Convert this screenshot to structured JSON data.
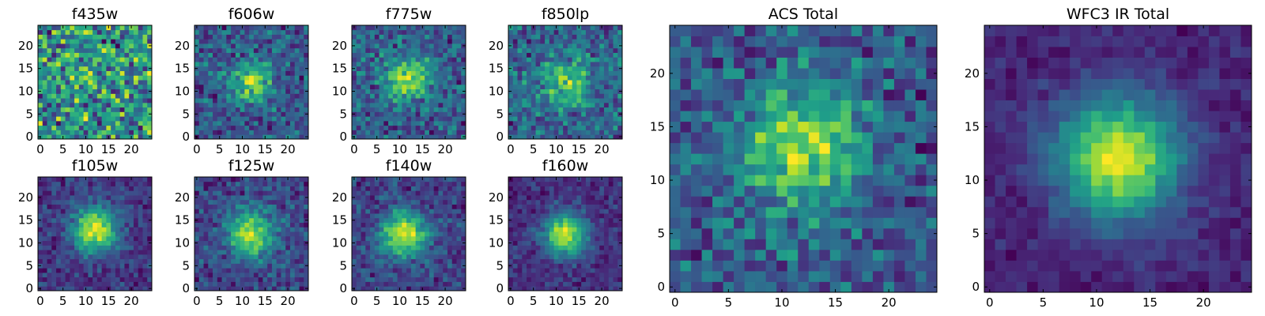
{
  "figure_type": "grid of pixel-image panels (heatmaps), viridis colormap",
  "chart_data": [
    {
      "type": "heatmap",
      "title": "f435w",
      "peak": [
        12,
        12
      ],
      "sigma": 4,
      "amp": 0.12,
      "noise": 0.42,
      "seed": 11,
      "xticks": [
        0,
        5,
        10,
        15,
        20
      ],
      "yticks": [
        0,
        5,
        10,
        15,
        20
      ],
      "xlim": [
        -0.5,
        24.5
      ],
      "ylim": [
        -0.5,
        24.5
      ]
    },
    {
      "type": "heatmap",
      "title": "f606w",
      "peak": [
        12,
        12
      ],
      "sigma": 3.2,
      "amp": 0.45,
      "noise": 0.26,
      "seed": 23,
      "xticks": [
        0,
        5,
        10,
        15,
        20
      ],
      "yticks": [
        0,
        5,
        10,
        15,
        20
      ],
      "xlim": [
        -0.5,
        24.5
      ],
      "ylim": [
        -0.5,
        24.5
      ]
    },
    {
      "type": "heatmap",
      "title": "f775w",
      "peak": [
        12,
        13
      ],
      "sigma": 3.4,
      "amp": 0.5,
      "noise": 0.25,
      "seed": 37,
      "xticks": [
        0,
        5,
        10,
        15,
        20
      ],
      "yticks": [
        0,
        5,
        10,
        15,
        20
      ],
      "xlim": [
        -0.5,
        24.5
      ],
      "ylim": [
        -0.5,
        24.5
      ]
    },
    {
      "type": "heatmap",
      "title": "f850lp",
      "peak": [
        12,
        12
      ],
      "sigma": 4,
      "amp": 0.4,
      "noise": 0.3,
      "seed": 41,
      "xticks": [
        0,
        5,
        10,
        15,
        20
      ],
      "yticks": [
        0,
        5,
        10,
        15,
        20
      ],
      "xlim": [
        -0.5,
        24.5
      ],
      "ylim": [
        -0.5,
        24.5
      ]
    },
    {
      "type": "heatmap",
      "title": "f105w",
      "peak": [
        12,
        13
      ],
      "sigma": 3.4,
      "amp": 0.7,
      "noise": 0.16,
      "seed": 53,
      "xticks": [
        0,
        5,
        10,
        15,
        20
      ],
      "yticks": [
        0,
        5,
        10,
        15,
        20
      ],
      "xlim": [
        -0.5,
        24.5
      ],
      "ylim": [
        -0.5,
        24.5
      ]
    },
    {
      "type": "heatmap",
      "title": "f125w",
      "peak": [
        12,
        12
      ],
      "sigma": 3.6,
      "amp": 0.62,
      "noise": 0.2,
      "seed": 67,
      "xticks": [
        0,
        5,
        10,
        15,
        20
      ],
      "yticks": [
        0,
        5,
        10,
        15,
        20
      ],
      "xlim": [
        -0.5,
        24.5
      ],
      "ylim": [
        -0.5,
        24.5
      ]
    },
    {
      "type": "heatmap",
      "title": "f140w",
      "peak": [
        11,
        12
      ],
      "sigma": 3.4,
      "amp": 0.68,
      "noise": 0.18,
      "seed": 71,
      "xticks": [
        0,
        5,
        10,
        15,
        20
      ],
      "yticks": [
        0,
        5,
        10,
        15,
        20
      ],
      "xlim": [
        -0.5,
        24.5
      ],
      "ylim": [
        -0.5,
        24.5
      ]
    },
    {
      "type": "heatmap",
      "title": "f160w",
      "peak": [
        12,
        12
      ],
      "sigma": 3.2,
      "amp": 0.74,
      "noise": 0.15,
      "seed": 83,
      "xticks": [
        0,
        5,
        10,
        15,
        20
      ],
      "yticks": [
        0,
        5,
        10,
        15,
        20
      ],
      "xlim": [
        -0.5,
        24.5
      ],
      "ylim": [
        -0.5,
        24.5
      ]
    },
    {
      "type": "heatmap",
      "title": "ACS Total",
      "peak": [
        12,
        13
      ],
      "sigma": 4,
      "amp": 0.5,
      "noise": 0.24,
      "seed": 97,
      "xticks": [
        0,
        5,
        10,
        15,
        20
      ],
      "yticks": [
        0,
        5,
        10,
        15,
        20
      ],
      "xlim": [
        -0.5,
        24.5
      ],
      "ylim": [
        -0.5,
        24.5
      ]
    },
    {
      "type": "heatmap",
      "title": "WFC3 IR Total",
      "peak": [
        12,
        12
      ],
      "sigma": 4,
      "amp": 0.82,
      "noise": 0.11,
      "seed": 101,
      "xticks": [
        0,
        5,
        10,
        15,
        20
      ],
      "yticks": [
        0,
        5,
        10,
        15,
        20
      ],
      "xlim": [
        -0.5,
        24.5
      ],
      "ylim": [
        -0.5,
        24.5
      ]
    }
  ]
}
